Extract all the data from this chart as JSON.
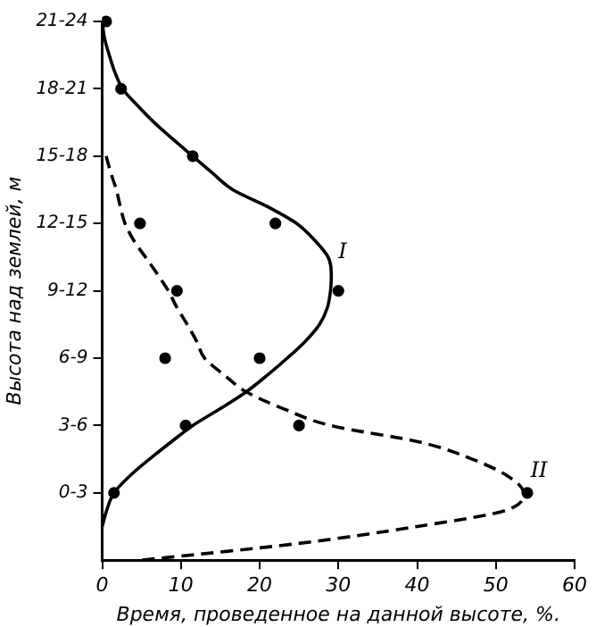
{
  "chart_data": {
    "type": "line",
    "orientation": "horizontal",
    "xlabel": "Время, проведенное на данной высоте, %.",
    "ylabel": "Высота над землей, м",
    "xlim": [
      0,
      60
    ],
    "xticks": [
      0,
      10,
      20,
      30,
      40,
      50,
      60
    ],
    "categories": [
      "21-24",
      null,
      null,
      null,
      "18-21",
      null,
      null,
      null,
      "15-18",
      null,
      null,
      null,
      "12-15",
      null,
      null,
      null,
      "9-12",
      null,
      null,
      null,
      "6-9",
      null,
      null,
      null,
      "3-6",
      null,
      null,
      null,
      "0-3",
      null,
      null,
      null,
      null
    ],
    "grid": false,
    "legend": false,
    "series": [
      {
        "name": "I",
        "line_style": "solid",
        "marker": "none",
        "color": "#000000",
        "values": [
          0,
          0.3,
          0.9,
          1.6,
          2.6,
          4.5,
          6.6,
          9,
          11.5,
          14,
          16.6,
          21,
          24.7,
          27,
          28.7,
          29.1,
          29,
          28.6,
          27.6,
          25.8,
          23.5,
          21,
          18.3,
          15,
          11.5,
          8.7,
          6,
          3.5,
          1.5,
          0.6,
          0,
          null,
          null
        ]
      },
      {
        "name": "II",
        "line_style": "dashed",
        "marker": "none",
        "color": "#000000",
        "values": [
          null,
          null,
          null,
          null,
          null,
          null,
          null,
          null,
          0.5,
          1.1,
          1.8,
          2.3,
          2.9,
          4,
          5.5,
          7,
          8.4,
          9.5,
          10.8,
          12,
          13,
          15.5,
          18.3,
          23,
          29,
          40.5,
          47,
          51.5,
          53.5,
          51.5,
          40,
          25,
          5
        ]
      },
      {
        "type": "scatter",
        "marker": "circle",
        "color": "#000000",
        "values": [
          0.5,
          null,
          null,
          null,
          2.4,
          null,
          null,
          null,
          11.5,
          null,
          null,
          null,
          22,
          null,
          null,
          null,
          30,
          null,
          null,
          null,
          20,
          null,
          null,
          null,
          10.6,
          null,
          null,
          null,
          1.5,
          null,
          null,
          null,
          null
        ]
      },
      {
        "type": "scatter",
        "marker": "circle",
        "color": "#000000",
        "values": [
          null,
          null,
          null,
          null,
          null,
          null,
          null,
          null,
          null,
          null,
          null,
          null,
          4.8,
          null,
          null,
          null,
          9.5,
          null,
          null,
          null,
          8,
          null,
          null,
          null,
          25,
          null,
          null,
          null,
          54,
          null,
          null,
          null,
          null
        ]
      }
    ]
  }
}
